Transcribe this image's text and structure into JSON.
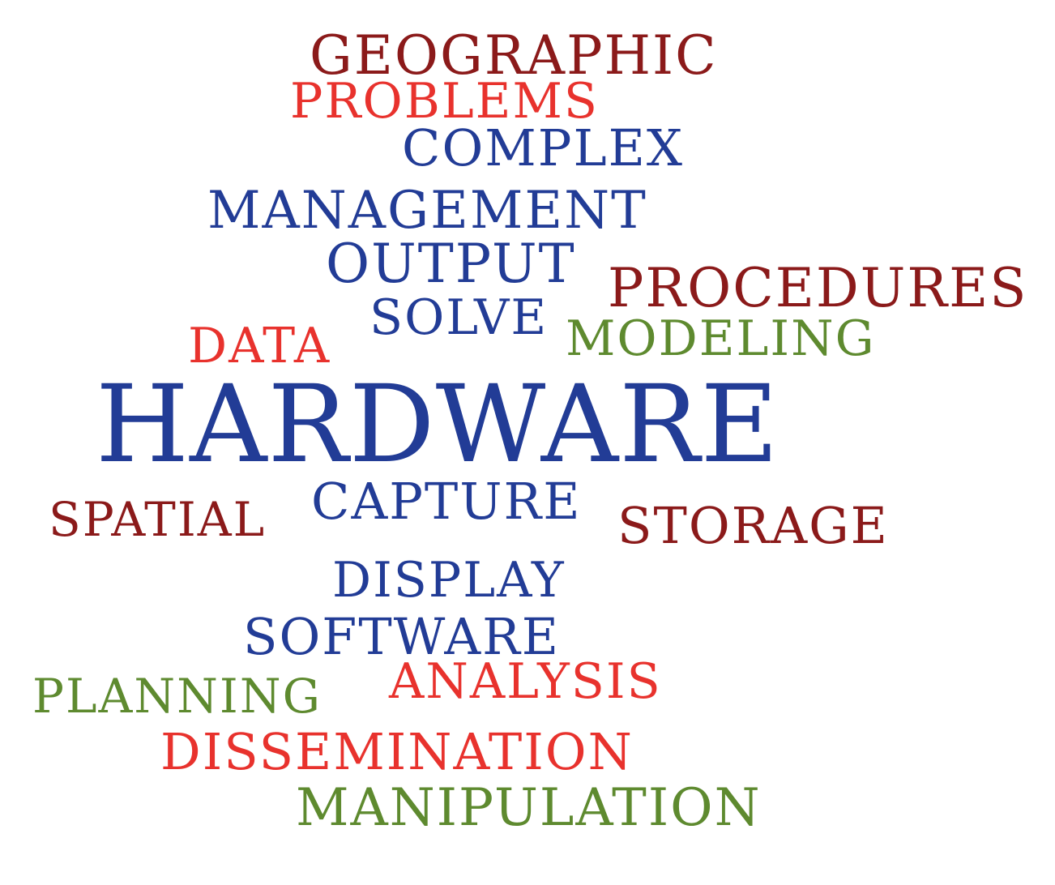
{
  "colors": {
    "dark_red": "#8b1a1a",
    "red": "#e8322d",
    "blue": "#223c96",
    "green": "#5e8a2f"
  },
  "words": {
    "geographic": "GEOGRAPHIC",
    "problems": "PROBLEMS",
    "complex": "COMPLEX",
    "management": "MANAGEMENT",
    "output": "OUTPUT",
    "procedures": "PROCEDURES",
    "solve": "SOLVE",
    "data": "DATA",
    "modeling": "MODELING",
    "hardware": "HARDWARE",
    "capture": "CAPTURE",
    "spatial": "SPATIAL",
    "storage": "STORAGE",
    "display": "DISPLAY",
    "software": "SOFTWARE",
    "planning": "PLANNING",
    "analysis": "ANALYSIS",
    "dissemination": "DISSEMINATION",
    "manipulation": "MANIPULATION"
  }
}
